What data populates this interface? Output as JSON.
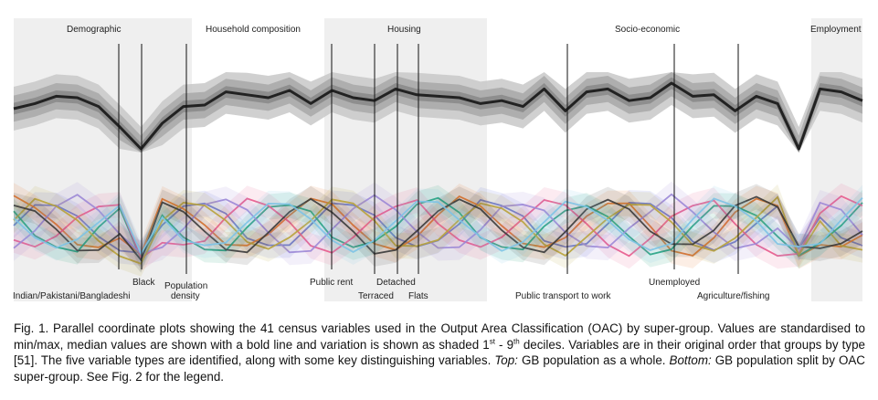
{
  "groups": [
    {
      "name": "Demographic"
    },
    {
      "name": "Household composition"
    },
    {
      "name": "Housing"
    },
    {
      "name": "Socio-economic"
    },
    {
      "name": "Employment"
    }
  ],
  "variable_labels": {
    "indian": "Indian/Pakistani/Bangladeshi",
    "black": "Black",
    "population_density_1": "Population",
    "population_density_2": "density",
    "public_rent": "Public rent",
    "detached": "Detached",
    "terraced": "Terraced",
    "flats": "Flats",
    "public_transport": "Public transport to work",
    "unemployed": "Unemployed",
    "agriculture": "Agriculture/fishing"
  },
  "caption": {
    "part1": "Fig. 1.  Parallel coordinate plots showing the 41 census variables used in the Output Area Classification (OAC) by super-group. Values are standardised to min/max, median values are shown with a bold line and variation is shown as shaded 1",
    "sup1": "st",
    "part2": " - 9",
    "sup2": "th",
    "part3": " deciles. Variables are in their original order that groups by type [51]. The five variable types are identified, along with some key distinguishing variables. ",
    "top_label": "Top:",
    "part4": " GB population as a whole. ",
    "bottom_label": "Bottom:",
    "part5": " GB population split by OAC super-group. See Fig. 2 for the legend."
  },
  "colors": {
    "group_band": "#efefef",
    "top_band_light": "#c8c8c8",
    "top_band_mid": "#a8a8a8",
    "top_band_dark": "#888888",
    "median_top": "#222222",
    "series": [
      "#5b6fd6",
      "#e8762a",
      "#1a9e77",
      "#e75a8c",
      "#9b87d6",
      "#b8a23a",
      "#3a3a3a",
      "#7dc3e6"
    ]
  }
}
